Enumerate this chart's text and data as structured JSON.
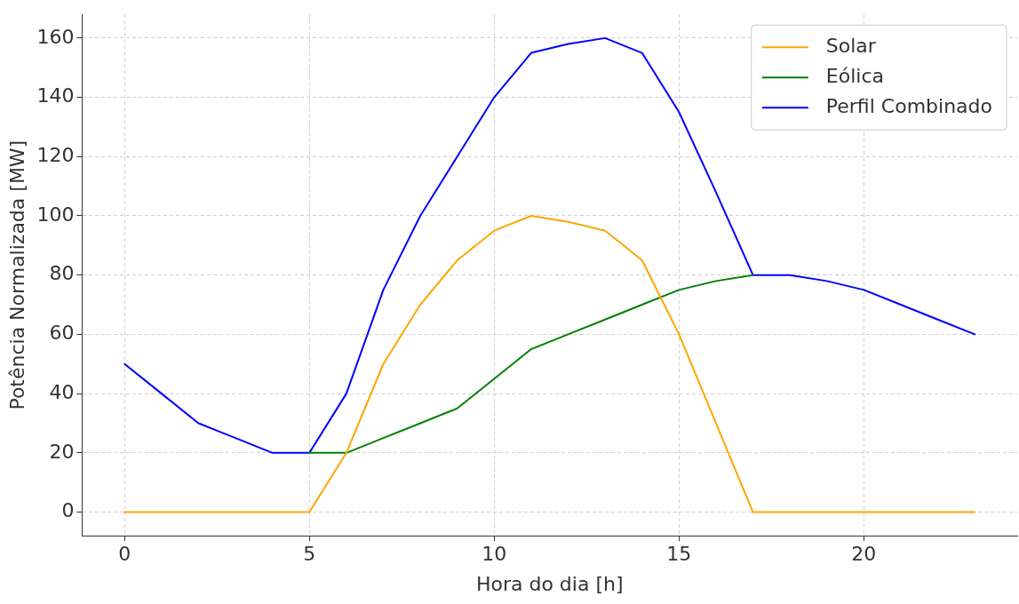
{
  "chart_data": {
    "type": "line",
    "xlabel": "Hora do dia [h]",
    "ylabel": "Potência Normalizada [MW]",
    "x": [
      0,
      1,
      2,
      3,
      4,
      5,
      6,
      7,
      8,
      9,
      10,
      11,
      12,
      13,
      14,
      15,
      16,
      17,
      18,
      19,
      20,
      21,
      22,
      23
    ],
    "series": [
      {
        "name": "Solar",
        "color": "#ffa500",
        "values": [
          0,
          0,
          0,
          0,
          0,
          0,
          20,
          50,
          70,
          85,
          95,
          100,
          98,
          95,
          85,
          60,
          30,
          0,
          0,
          0,
          0,
          0,
          0,
          0
        ]
      },
      {
        "name": "Eólica",
        "color": "#008000",
        "values": [
          null,
          null,
          null,
          null,
          null,
          20,
          20,
          25,
          30,
          35,
          45,
          55,
          60,
          65,
          70,
          75,
          78,
          80,
          null,
          null,
          null,
          null,
          null,
          null
        ]
      },
      {
        "name": "Perfil Combinado",
        "color": "#0000ff",
        "values": [
          50,
          40,
          30,
          25,
          20,
          20,
          40,
          75,
          100,
          120,
          140,
          155,
          158,
          160,
          155,
          135,
          108,
          80,
          80,
          78,
          75,
          70,
          65,
          60
        ]
      }
    ],
    "xlim": [
      -1.15,
      24.15
    ],
    "xticks": [
      0,
      5,
      10,
      15,
      20
    ],
    "ylim": [
      -8,
      168
    ],
    "yticks": [
      0,
      20,
      40,
      60,
      80,
      100,
      120,
      140,
      160
    ],
    "grid": true,
    "legend": "top right",
    "marker": "none",
    "line_style": "solid"
  }
}
